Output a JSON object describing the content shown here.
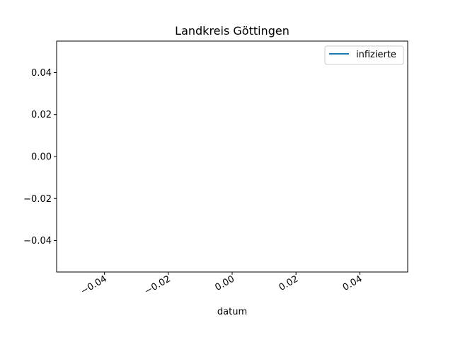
{
  "chart_data": {
    "type": "line",
    "title": "Landkreis Göttingen",
    "xlabel": "datum",
    "ylabel": "",
    "xlim": [
      -0.055,
      0.055
    ],
    "ylim": [
      -0.055,
      0.055
    ],
    "x_ticks": [
      -0.04,
      -0.02,
      0.0,
      0.02,
      0.04
    ],
    "x_tick_labels": [
      "−0.04",
      "−0.02",
      "0.00",
      "0.02",
      "0.04"
    ],
    "y_ticks": [
      -0.04,
      -0.02,
      0.0,
      0.02,
      0.04
    ],
    "y_tick_labels": [
      "−0.04",
      "−0.02",
      "0.00",
      "0.02",
      "0.04"
    ],
    "grid": false,
    "legend_position": "upper right",
    "series": [
      {
        "name": "infizierte",
        "color": "#1f77b4",
        "x": [],
        "y": []
      }
    ]
  }
}
